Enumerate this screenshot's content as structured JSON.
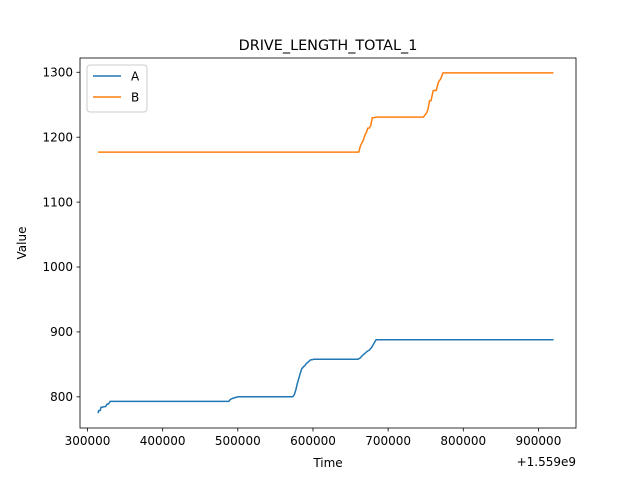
{
  "chart_data": {
    "type": "line",
    "title": "DRIVE_LENGTH_TOTAL_1",
    "xlabel": "Time",
    "ylabel": "Value",
    "x_offset_label": "+1.559e9",
    "xlim": [
      290000,
      950000
    ],
    "ylim": [
      752,
      1322
    ],
    "x_ticks": [
      300000,
      400000,
      500000,
      600000,
      700000,
      800000,
      900000
    ],
    "x_tick_labels": [
      "300000",
      "400000",
      "500000",
      "600000",
      "700000",
      "800000",
      "900000"
    ],
    "y_ticks": [
      800,
      900,
      1000,
      1100,
      1200,
      1300
    ],
    "y_tick_labels": [
      "800",
      "900",
      "1000",
      "1100",
      "1200",
      "1300"
    ],
    "grid": false,
    "legend_position": "top-left",
    "series": [
      {
        "name": "A",
        "color": "#1f77b4",
        "x": [
          314000,
          315000,
          317000,
          318000,
          320000,
          322000,
          324000,
          326000,
          328000,
          330000,
          333000,
          488000,
          490000,
          494000,
          497000,
          500000,
          503000,
          573000,
          575000,
          577000,
          579000,
          581000,
          583000,
          585000,
          587000,
          589000,
          591000,
          593000,
          595000,
          597000,
          599000,
          601000,
          603000,
          605000,
          660000,
          663000,
          666000,
          669000,
          672000,
          675000,
          678000,
          681000,
          684000,
          920000
        ],
        "y": [
          775,
          779,
          779,
          784,
          784,
          785,
          785,
          789,
          789,
          793,
          793,
          793,
          796,
          798,
          799,
          800,
          800,
          800,
          803,
          810,
          820,
          828,
          836,
          843,
          846,
          848,
          851,
          853,
          855,
          857,
          857,
          858,
          858,
          858,
          858,
          860,
          864,
          867,
          870,
          872,
          876,
          882,
          888,
          888
        ]
      },
      {
        "name": "B",
        "color": "#ff7f0e",
        "x": [
          314000,
          661000,
          663000,
          665000,
          667000,
          669000,
          671000,
          673000,
          675000,
          677000,
          679000,
          681000,
          684000,
          687000,
          747000,
          749000,
          751000,
          753000,
          755000,
          757000,
          760000,
          764000,
          767000,
          770000,
          773000,
          775000,
          920000
        ],
        "y": [
          1177,
          1177,
          1186,
          1191,
          1195,
          1203,
          1207,
          1214,
          1214,
          1218,
          1230,
          1230,
          1231,
          1231,
          1231,
          1234,
          1237,
          1243,
          1256,
          1256,
          1272,
          1272,
          1285,
          1290,
          1299,
          1299,
          1299
        ]
      }
    ]
  }
}
